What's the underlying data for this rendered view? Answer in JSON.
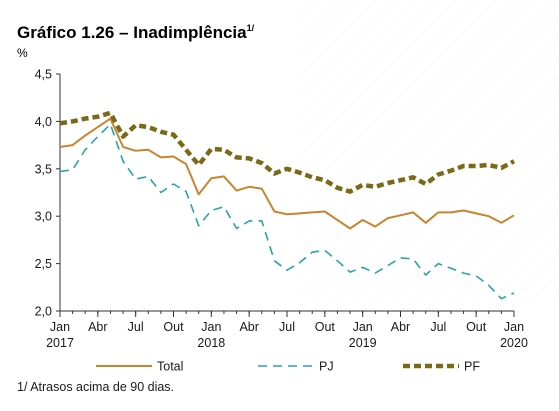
{
  "chart_data": {
    "type": "line",
    "title": "Gráfico 1.26 – Inadimplência",
    "title_footnote_marker": "1/",
    "ylabel": "%",
    "ylim": [
      2.0,
      4.5
    ],
    "yticks": [
      "2,0",
      "2,5",
      "3,0",
      "3,5",
      "4,0",
      "4,5"
    ],
    "xtick_labels": [
      {
        "month": "Jan",
        "year": "2017"
      },
      {
        "month": "Abr",
        "year": ""
      },
      {
        "month": "Jul",
        "year": ""
      },
      {
        "month": "Out",
        "year": ""
      },
      {
        "month": "Jan",
        "year": "2018"
      },
      {
        "month": "Abr",
        "year": ""
      },
      {
        "month": "Jul",
        "year": ""
      },
      {
        "month": "Out",
        "year": ""
      },
      {
        "month": "Jan",
        "year": "2019"
      },
      {
        "month": "Abr",
        "year": ""
      },
      {
        "month": "Jul",
        "year": ""
      },
      {
        "month": "Out",
        "year": ""
      },
      {
        "month": "Jan",
        "year": "2020"
      }
    ],
    "x": [
      "2017-01",
      "2017-02",
      "2017-03",
      "2017-04",
      "2017-05",
      "2017-06",
      "2017-07",
      "2017-08",
      "2017-09",
      "2017-10",
      "2017-11",
      "2017-12",
      "2018-01",
      "2018-02",
      "2018-03",
      "2018-04",
      "2018-05",
      "2018-06",
      "2018-07",
      "2018-08",
      "2018-09",
      "2018-10",
      "2018-11",
      "2018-12",
      "2019-01",
      "2019-02",
      "2019-03",
      "2019-04",
      "2019-05",
      "2019-06",
      "2019-07",
      "2019-08",
      "2019-09",
      "2019-10",
      "2019-11",
      "2019-12",
      "2020-01"
    ],
    "series": [
      {
        "name": "Total",
        "color": "#c9842e",
        "style": "solid",
        "values": [
          3.73,
          3.75,
          3.85,
          3.94,
          4.03,
          3.73,
          3.69,
          3.7,
          3.62,
          3.63,
          3.55,
          3.23,
          3.4,
          3.42,
          3.27,
          3.31,
          3.29,
          3.05,
          3.02,
          3.03,
          3.04,
          3.05,
          2.96,
          2.87,
          2.96,
          2.89,
          2.98,
          3.01,
          3.04,
          2.93,
          3.04,
          3.04,
          3.06,
          3.03,
          3.0,
          2.93,
          3.01
        ]
      },
      {
        "name": "PJ",
        "color": "#2aa3a8",
        "style": "dashed",
        "values": [
          3.47,
          3.49,
          3.7,
          3.84,
          3.97,
          3.58,
          3.39,
          3.42,
          3.25,
          3.34,
          3.26,
          2.9,
          3.06,
          3.1,
          2.87,
          2.95,
          2.95,
          2.53,
          2.43,
          2.51,
          2.62,
          2.64,
          2.53,
          2.41,
          2.46,
          2.4,
          2.48,
          2.56,
          2.55,
          2.38,
          2.5,
          2.45,
          2.4,
          2.37,
          2.27,
          2.13,
          2.19
        ]
      },
      {
        "name": "PF",
        "color": "#7a6a18",
        "style": "dotted",
        "values": [
          3.98,
          4.0,
          4.03,
          4.05,
          4.09,
          3.84,
          3.96,
          3.94,
          3.89,
          3.86,
          3.7,
          3.54,
          3.71,
          3.7,
          3.62,
          3.61,
          3.56,
          3.45,
          3.5,
          3.46,
          3.41,
          3.38,
          3.3,
          3.26,
          3.33,
          3.31,
          3.35,
          3.38,
          3.41,
          3.34,
          3.44,
          3.48,
          3.53,
          3.53,
          3.54,
          3.51,
          3.58
        ]
      }
    ],
    "legend_position": "bottom",
    "grid": false,
    "footnote": "1/ Atrasos acima de 90 dias."
  }
}
